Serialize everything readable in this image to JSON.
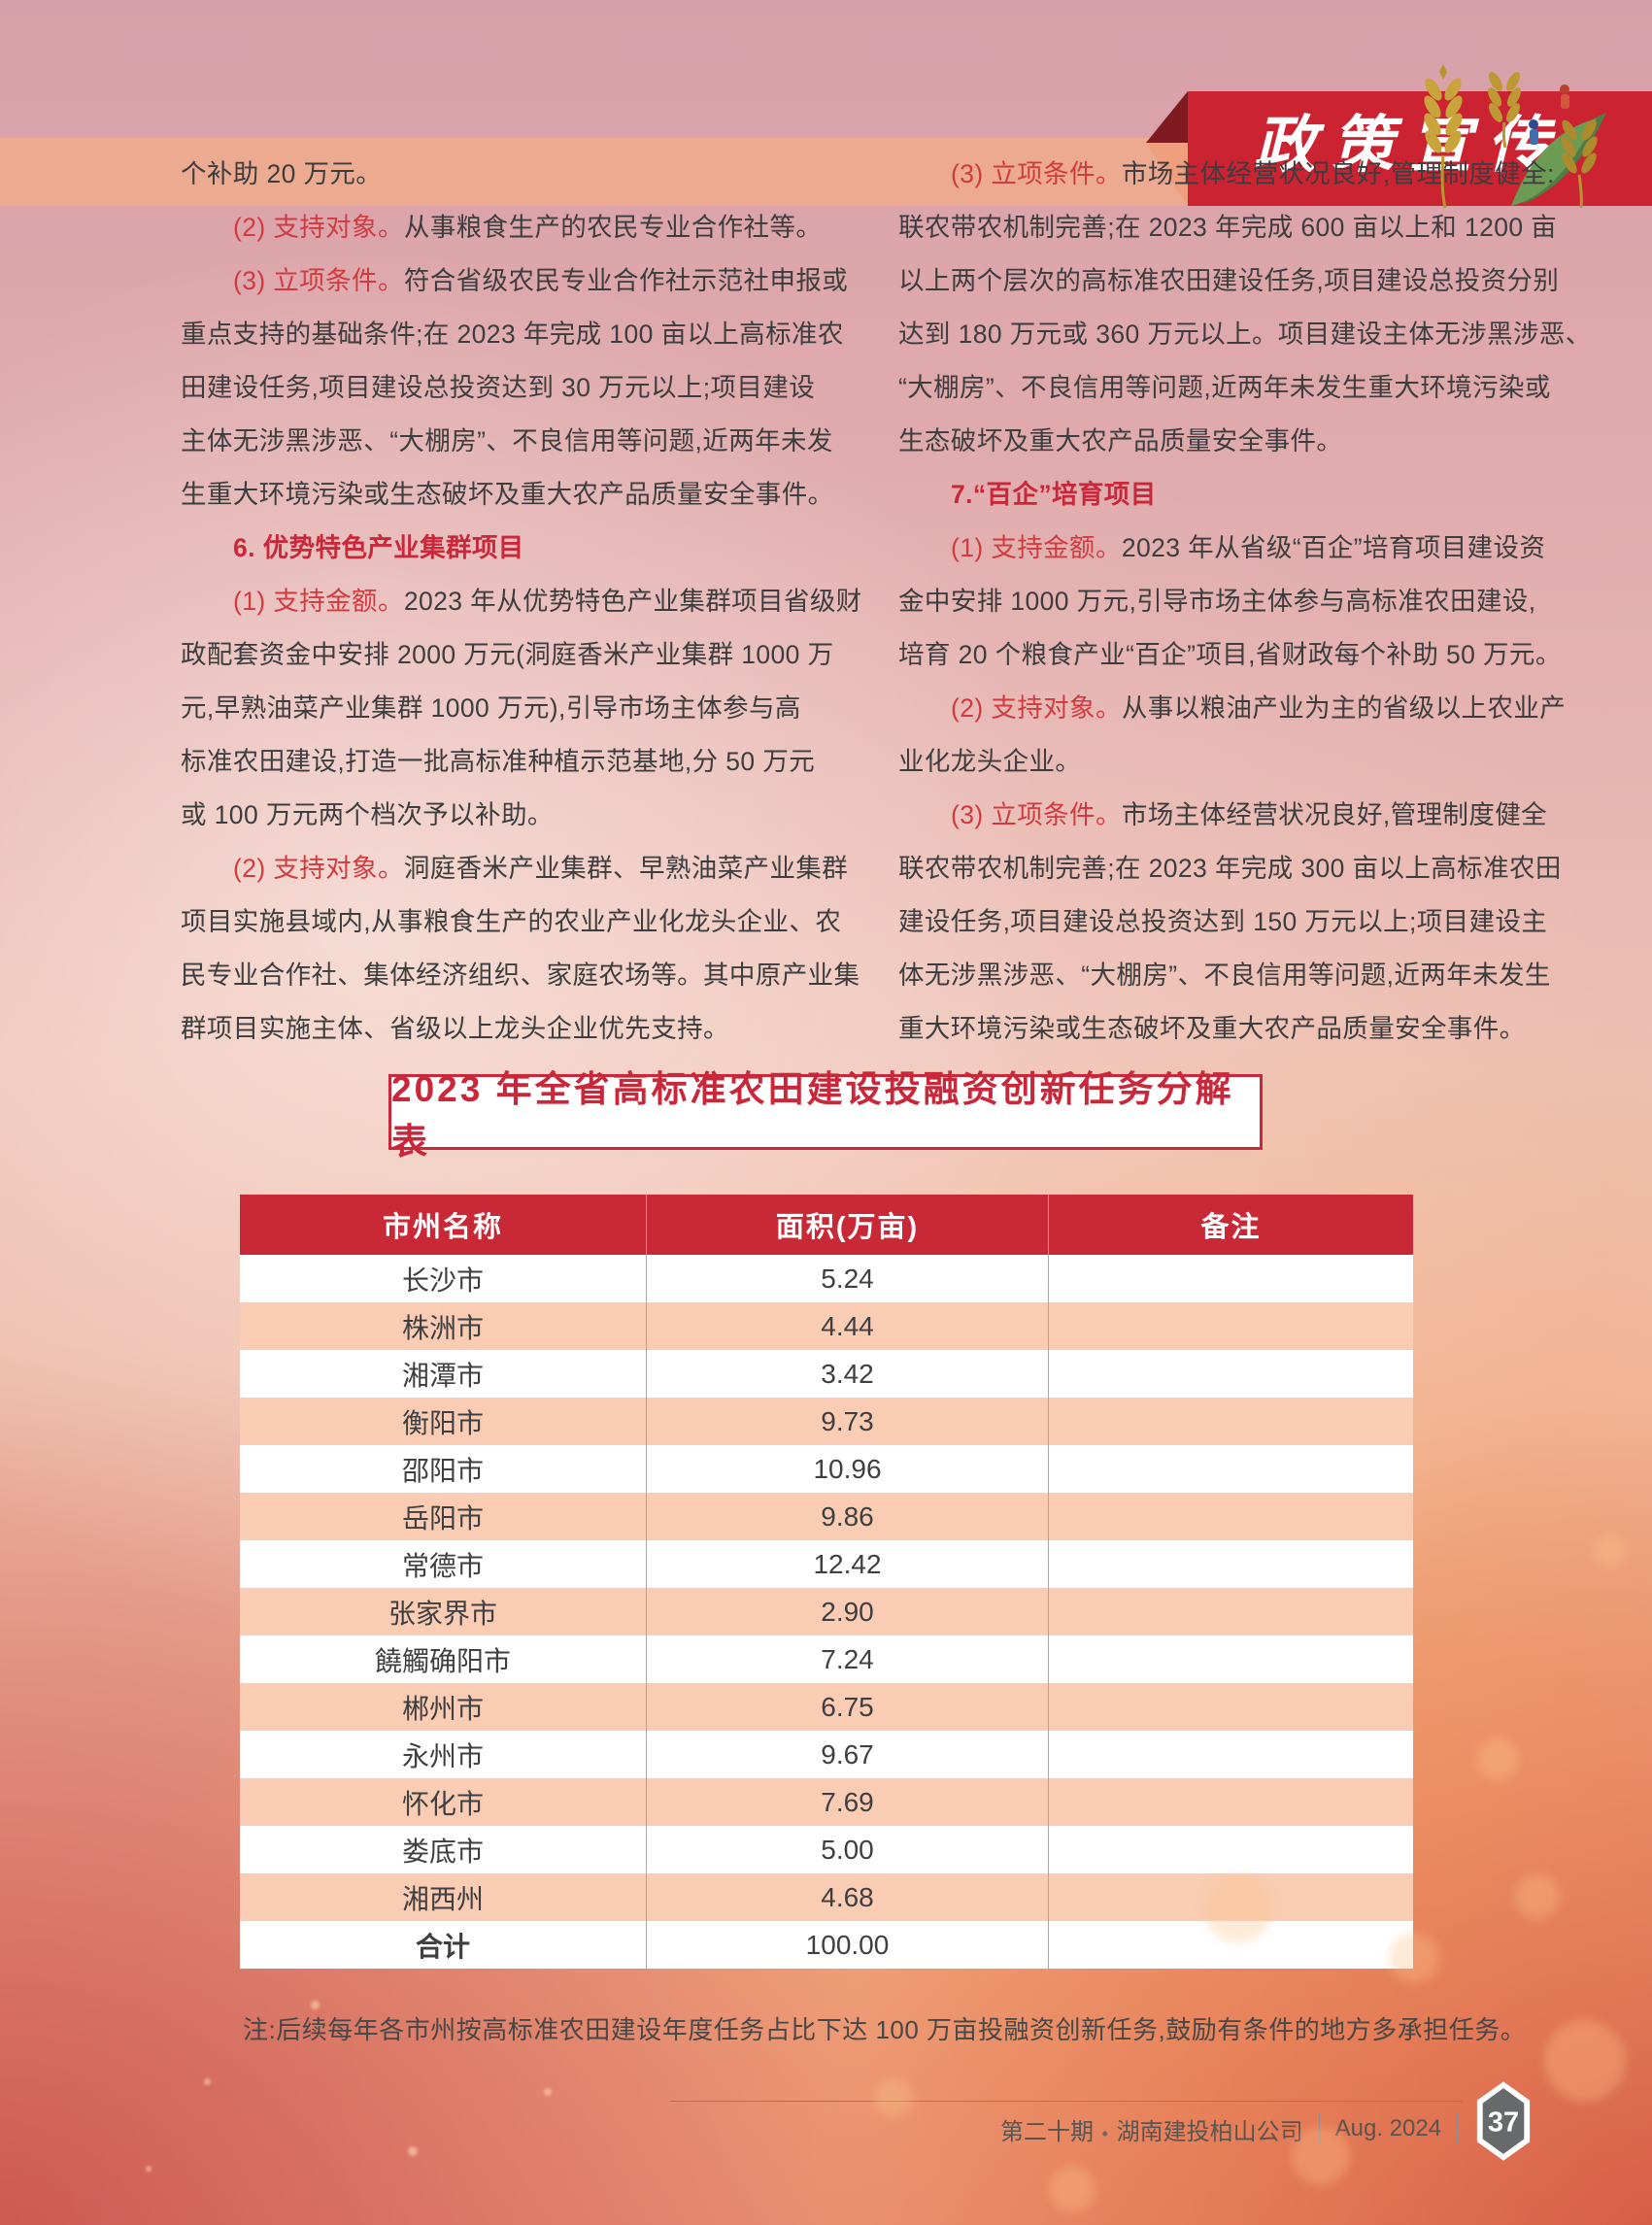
{
  "banner": {
    "title": "政策宣传"
  },
  "columns": {
    "left": [
      {
        "e": 1,
        "s": [
          {
            "t": "个补助 20 万元。",
            "c": "dark"
          }
        ]
      },
      {
        "i": 1,
        "e": 1,
        "s": [
          {
            "t": "(2) 支持对象。",
            "c": "red"
          },
          {
            "t": "从事粮食生产的农民专业合作社等。",
            "c": "dark"
          }
        ]
      },
      {
        "i": 1,
        "s": [
          {
            "t": "(3) 立项条件。",
            "c": "red"
          },
          {
            "t": "符合省级农民专业合作社示范社申报或",
            "c": "dark"
          }
        ]
      },
      {
        "s": [
          {
            "t": "重点支持的基础条件;在 2023 年完成 100 亩以上高标准农",
            "c": "dark"
          }
        ]
      },
      {
        "s": [
          {
            "t": "田建设任务,项目建设总投资达到 30 万元以上;项目建设",
            "c": "dark"
          }
        ]
      },
      {
        "s": [
          {
            "t": "主体无涉黑涉恶、“大棚房”、不良信用等问题,近两年未发",
            "c": "dark"
          }
        ]
      },
      {
        "e": 1,
        "s": [
          {
            "t": "生重大环境污染或生态破坏及重大农产品质量安全事件。",
            "c": "dark"
          }
        ]
      },
      {
        "i": 1,
        "e": 1,
        "s": [
          {
            "t": "6. 优势特色产业集群项目",
            "c": "redbold"
          }
        ]
      },
      {
        "i": 1,
        "s": [
          {
            "t": "(1) 支持金额。",
            "c": "red"
          },
          {
            "t": "2023 年从优势特色产业集群项目省级财",
            "c": "dark"
          }
        ]
      },
      {
        "s": [
          {
            "t": "政配套资金中安排 2000 万元(洞庭香米产业集群 1000 万",
            "c": "dark"
          }
        ]
      },
      {
        "s": [
          {
            "t": "元,早熟油菜产业集群 1000 万元),引导市场主体参与高",
            "c": "dark"
          }
        ]
      },
      {
        "s": [
          {
            "t": "标准农田建设,打造一批高标准种植示范基地,分 50 万元",
            "c": "dark"
          }
        ]
      },
      {
        "e": 1,
        "s": [
          {
            "t": "或 100 万元两个档次予以补助。",
            "c": "dark"
          }
        ]
      },
      {
        "i": 1,
        "s": [
          {
            "t": "(2) 支持对象。",
            "c": "red"
          },
          {
            "t": "洞庭香米产业集群、早熟油菜产业集群",
            "c": "dark"
          }
        ]
      },
      {
        "s": [
          {
            "t": "项目实施县域内,从事粮食生产的农业产业化龙头企业、农",
            "c": "dark"
          }
        ]
      },
      {
        "s": [
          {
            "t": "民专业合作社、集体经济组织、家庭农场等。其中原产业集",
            "c": "dark"
          }
        ]
      },
      {
        "e": 1,
        "s": [
          {
            "t": "群项目实施主体、省级以上龙头企业优先支持。",
            "c": "dark"
          }
        ]
      }
    ],
    "right": [
      {
        "i": 1,
        "s": [
          {
            "t": "(3) 立项条件。",
            "c": "red"
          },
          {
            "t": "市场主体经营状况良好,管理制度健全:",
            "c": "dark"
          }
        ]
      },
      {
        "s": [
          {
            "t": "联农带农机制完善;在 2023 年完成 600 亩以上和 1200 亩",
            "c": "dark"
          }
        ]
      },
      {
        "s": [
          {
            "t": "以上两个层次的高标准农田建设任务,项目建设总投资分别",
            "c": "dark"
          }
        ]
      },
      {
        "s": [
          {
            "t": "达到 180 万元或 360 万元以上。项目建设主体无涉黑涉恶、",
            "c": "dark"
          }
        ]
      },
      {
        "s": [
          {
            "t": "“大棚房”、不良信用等问题,近两年未发生重大环境污染或",
            "c": "dark"
          }
        ]
      },
      {
        "e": 1,
        "s": [
          {
            "t": "生态破坏及重大农产品质量安全事件。",
            "c": "dark"
          }
        ]
      },
      {
        "i": 1,
        "e": 1,
        "s": [
          {
            "t": "7.“百企”培育项目",
            "c": "redbold"
          }
        ]
      },
      {
        "i": 1,
        "s": [
          {
            "t": "(1) 支持金额。",
            "c": "red"
          },
          {
            "t": "2023 年从省级“百企”培育项目建设资",
            "c": "dark"
          }
        ]
      },
      {
        "s": [
          {
            "t": "金中安排 1000 万元,引导市场主体参与高标准农田建设,",
            "c": "dark"
          }
        ]
      },
      {
        "e": 1,
        "s": [
          {
            "t": "培育 20 个粮食产业“百企”项目,省财政每个补助 50 万元。",
            "c": "dark"
          }
        ]
      },
      {
        "i": 1,
        "s": [
          {
            "t": "(2) 支持对象。",
            "c": "red"
          },
          {
            "t": "从事以粮油产业为主的省级以上农业产",
            "c": "dark"
          }
        ]
      },
      {
        "e": 1,
        "s": [
          {
            "t": "业化龙头企业。",
            "c": "dark"
          }
        ]
      },
      {
        "i": 1,
        "s": [
          {
            "t": "(3) 立项条件。",
            "c": "red"
          },
          {
            "t": "市场主体经营状况良好,管理制度健全",
            "c": "dark"
          }
        ]
      },
      {
        "s": [
          {
            "t": "联农带农机制完善;在 2023 年完成 300 亩以上高标准农田",
            "c": "dark"
          }
        ]
      },
      {
        "s": [
          {
            "t": "建设任务,项目建设总投资达到 150 万元以上;项目建设主",
            "c": "dark"
          }
        ]
      },
      {
        "s": [
          {
            "t": "体无涉黑涉恶、“大棚房”、不良信用等问题,近两年未发生",
            "c": "dark"
          }
        ]
      },
      {
        "e": 1,
        "s": [
          {
            "t": "重大环境污染或生态破坏及重大农产品质量安全事件。",
            "c": "dark"
          }
        ]
      }
    ]
  },
  "table": {
    "title": "2023 年全省高标准农田建设投融资创新任务分解表",
    "headers": [
      "市州名称",
      "面积(万亩)",
      "备注"
    ],
    "rows": [
      {
        "cells": [
          "长沙市",
          "5.24",
          ""
        ]
      },
      {
        "cells": [
          "株洲市",
          "4.44",
          ""
        ]
      },
      {
        "cells": [
          "湘潭市",
          "3.42",
          ""
        ]
      },
      {
        "cells": [
          "衡阳市",
          "9.73",
          ""
        ]
      },
      {
        "cells": [
          "邵阳市",
          "10.96",
          ""
        ]
      },
      {
        "cells": [
          "岳阳市",
          "9.86",
          ""
        ]
      },
      {
        "cells": [
          "常德市",
          "12.42",
          ""
        ]
      },
      {
        "cells": [
          "张家界市",
          "2.90",
          ""
        ]
      },
      {
        "cells": [
          "饒觸确阳市",
          "7.24",
          ""
        ]
      },
      {
        "cells": [
          "郴州市",
          "6.75",
          ""
        ]
      },
      {
        "cells": [
          "永州市",
          "9.67",
          ""
        ]
      },
      {
        "cells": [
          "怀化市",
          "7.69",
          ""
        ]
      },
      {
        "cells": [
          "娄底市",
          "5.00",
          ""
        ]
      },
      {
        "cells": [
          "湘西州",
          "4.68",
          ""
        ]
      },
      {
        "cells": [
          "合计",
          "100.00",
          ""
        ],
        "bold": true
      }
    ],
    "note": "注:后续每年各市州按高标准农田建设年度任务占比下达 100 万亩投融资创新任务,鼓励有条件的地方多承担任务。"
  },
  "footer": {
    "issue": "第二十期",
    "separator": "•",
    "company": "湖南建投柏山公司",
    "date": "Aug. 2024",
    "page_number": "37"
  },
  "colors": {
    "banner_red": "#cb2331",
    "table_header_red": "#c92837",
    "row_peach": "#f9ccb3",
    "accent_red": "#d03b40",
    "band_salmon": "#ecaa90"
  }
}
